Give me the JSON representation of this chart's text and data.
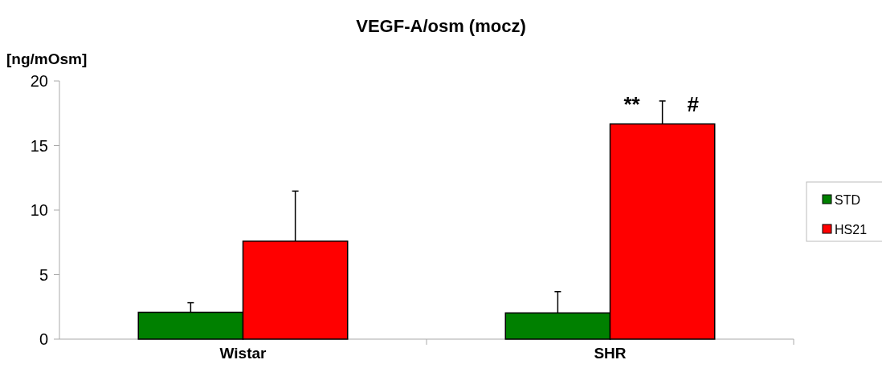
{
  "chart_data": {
    "type": "bar",
    "title": "VEGF-A/osm (mocz)",
    "ylabel": "[ng/mOsm]",
    "categories": [
      "Wistar",
      "SHR"
    ],
    "series": [
      {
        "name": "STD",
        "color": "#008000",
        "values": [
          2.08,
          2.03
        ],
        "errors": [
          [
            2.08,
            2.82
          ],
          [
            2.03,
            3.68
          ]
        ]
      },
      {
        "name": "HS21",
        "color": "#ff0000",
        "values": [
          7.59,
          16.67
        ],
        "errors": [
          [
            7.59,
            11.47
          ],
          [
            16.67,
            18.45
          ]
        ]
      }
    ],
    "ylim": [
      0,
      20
    ],
    "yticks": [
      0,
      5,
      10,
      15,
      20
    ],
    "grid": false,
    "legend": "right",
    "annotations": [
      "**",
      "#"
    ]
  }
}
